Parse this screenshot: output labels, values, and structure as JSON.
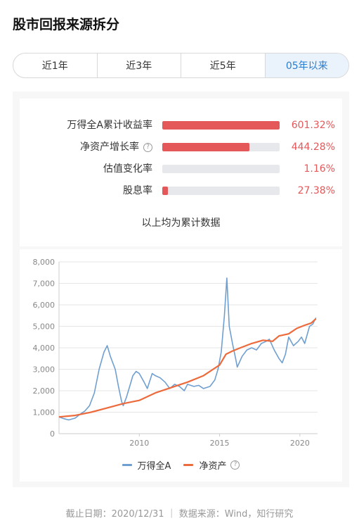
{
  "page": {
    "title": "股市回报来源拆分"
  },
  "tabs": [
    {
      "label": "近1年",
      "active": false
    },
    {
      "label": "近3年",
      "active": false
    },
    {
      "label": "近5年",
      "active": false
    },
    {
      "label": "05年以来",
      "active": true
    }
  ],
  "summary": {
    "rows": [
      {
        "label": "万得全A累计收益率",
        "value": "601.32%",
        "fill": 1.0,
        "help": false
      },
      {
        "label": "净资产增长率",
        "value": "444.28%",
        "fill": 0.74,
        "help": true
      },
      {
        "label": "估值变化率",
        "value": "1.16%",
        "fill": 0.0,
        "help": false
      },
      {
        "label": "股息率",
        "value": "27.38%",
        "fill": 0.05,
        "help": false
      }
    ],
    "note": "以上均为累计数据",
    "colors": {
      "fill": "#e5585a",
      "track": "#e6e8ec",
      "value": "#e5585a"
    }
  },
  "chart_data": {
    "type": "line",
    "ylim": [
      0,
      8000
    ],
    "yticks": [
      0,
      1000,
      2000,
      3000,
      4000,
      5000,
      6000,
      7000,
      8000
    ],
    "ytick_labels": [
      "0",
      "1,000",
      "2,000",
      "3,000",
      "4,000",
      "5,000",
      "6,000",
      "7,000",
      "8,000"
    ],
    "xlim": [
      2005,
      2021.1
    ],
    "xticks": [
      2010,
      2015,
      2020
    ],
    "xtick_labels": [
      "2010",
      "2015",
      "2020"
    ],
    "grid": true,
    "legend_position": "bottom",
    "series": [
      {
        "name": "万得全A",
        "color": "#6f9fd0",
        "points": [
          [
            2005.0,
            780
          ],
          [
            2005.3,
            700
          ],
          [
            2005.6,
            640
          ],
          [
            2006.0,
            720
          ],
          [
            2006.3,
            900
          ],
          [
            2006.6,
            1050
          ],
          [
            2006.9,
            1300
          ],
          [
            2007.2,
            1900
          ],
          [
            2007.5,
            3000
          ],
          [
            2007.8,
            3800
          ],
          [
            2008.0,
            4100
          ],
          [
            2008.2,
            3600
          ],
          [
            2008.5,
            3000
          ],
          [
            2008.7,
            2200
          ],
          [
            2008.9,
            1500
          ],
          [
            2009.0,
            1300
          ],
          [
            2009.2,
            1700
          ],
          [
            2009.4,
            2200
          ],
          [
            2009.6,
            2700
          ],
          [
            2009.8,
            2900
          ],
          [
            2010.0,
            2800
          ],
          [
            2010.3,
            2400
          ],
          [
            2010.5,
            2100
          ],
          [
            2010.8,
            2800
          ],
          [
            2011.0,
            2700
          ],
          [
            2011.3,
            2600
          ],
          [
            2011.6,
            2400
          ],
          [
            2011.9,
            2100
          ],
          [
            2012.2,
            2300
          ],
          [
            2012.5,
            2200
          ],
          [
            2012.8,
            2000
          ],
          [
            2013.0,
            2300
          ],
          [
            2013.4,
            2200
          ],
          [
            2013.7,
            2250
          ],
          [
            2014.0,
            2100
          ],
          [
            2014.4,
            2200
          ],
          [
            2014.7,
            2500
          ],
          [
            2014.9,
            3000
          ],
          [
            2015.1,
            3800
          ],
          [
            2015.3,
            5500
          ],
          [
            2015.45,
            7250
          ],
          [
            2015.6,
            5000
          ],
          [
            2015.8,
            4200
          ],
          [
            2016.0,
            3500
          ],
          [
            2016.1,
            3100
          ],
          [
            2016.4,
            3600
          ],
          [
            2016.7,
            3900
          ],
          [
            2017.0,
            4000
          ],
          [
            2017.3,
            3900
          ],
          [
            2017.6,
            4200
          ],
          [
            2017.9,
            4300
          ],
          [
            2018.1,
            4400
          ],
          [
            2018.4,
            3900
          ],
          [
            2018.7,
            3500
          ],
          [
            2018.9,
            3300
          ],
          [
            2019.1,
            3700
          ],
          [
            2019.3,
            4500
          ],
          [
            2019.6,
            4100
          ],
          [
            2019.9,
            4300
          ],
          [
            2020.1,
            4500
          ],
          [
            2020.3,
            4200
          ],
          [
            2020.6,
            5000
          ],
          [
            2020.8,
            5100
          ],
          [
            2021.0,
            5400
          ]
        ]
      },
      {
        "name": "净资产",
        "color": "#ec6a3c",
        "points": [
          [
            2005.0,
            780
          ],
          [
            2006.0,
            850
          ],
          [
            2007.0,
            1000
          ],
          [
            2008.0,
            1200
          ],
          [
            2009.0,
            1400
          ],
          [
            2010.0,
            1550
          ],
          [
            2011.0,
            1900
          ],
          [
            2012.0,
            2150
          ],
          [
            2013.0,
            2400
          ],
          [
            2014.0,
            2700
          ],
          [
            2014.6,
            3000
          ],
          [
            2015.0,
            3200
          ],
          [
            2015.4,
            3700
          ],
          [
            2015.8,
            3850
          ],
          [
            2016.3,
            4000
          ],
          [
            2017.0,
            4200
          ],
          [
            2017.7,
            4350
          ],
          [
            2018.3,
            4300
          ],
          [
            2018.7,
            4550
          ],
          [
            2019.3,
            4650
          ],
          [
            2019.8,
            4900
          ],
          [
            2020.3,
            5050
          ],
          [
            2020.7,
            5150
          ],
          [
            2021.0,
            5350
          ]
        ]
      }
    ]
  },
  "legend": {
    "items": [
      {
        "label": "万得全A",
        "color": "#6f9fd0"
      },
      {
        "label": "净资产",
        "color": "#ec6a3c"
      }
    ]
  },
  "footer": {
    "text": "截止日期：2020/12/31 ｜ 数据来源：Wind，知行研究"
  }
}
